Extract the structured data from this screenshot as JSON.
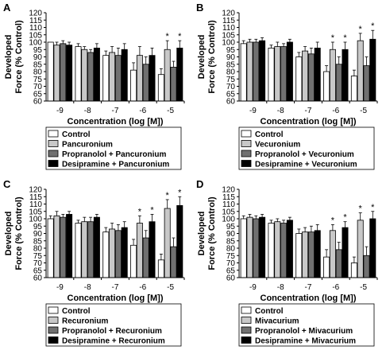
{
  "chart_data": [
    {
      "type": "bar",
      "panel": "A",
      "ylabel": [
        "Developed",
        "Force (% Control)"
      ],
      "xlabel": "Concentration (log [M])",
      "categories": [
        "-9",
        "-8",
        "-7",
        "-6",
        "-5"
      ],
      "ylim": [
        60,
        120
      ],
      "yticks": [
        60,
        65,
        70,
        75,
        80,
        85,
        90,
        95,
        100,
        105,
        110,
        115,
        120
      ],
      "series": [
        {
          "name": "Control",
          "color": "#ffffff",
          "values": [
            100,
            97,
            91,
            81,
            78
          ],
          "errors": [
            0,
            2,
            3,
            5,
            4
          ]
        },
        {
          "name": "Pancuronium",
          "color": "#c8c8c8",
          "values": [
            98,
            95,
            93,
            91,
            95
          ],
          "errors": [
            2,
            2,
            4,
            6,
            6
          ]
        },
        {
          "name": "Propranolol + Pancuronium",
          "color": "#707070",
          "values": [
            99,
            93,
            91,
            85,
            83
          ],
          "errors": [
            2,
            2,
            5,
            5,
            4
          ]
        },
        {
          "name": "Desipramine + Pancuronium",
          "color": "#000000",
          "values": [
            98,
            96,
            95,
            91,
            96
          ],
          "errors": [
            2,
            3,
            4,
            5,
            5
          ]
        }
      ],
      "annotations": [
        {
          "category": "-5",
          "series": 1,
          "text": "*"
        },
        {
          "category": "-5",
          "series": 3,
          "text": "*"
        }
      ]
    },
    {
      "type": "bar",
      "panel": "B",
      "ylabel": [
        "Developed",
        "Force (% Control)"
      ],
      "xlabel": "Concentration (log [M])",
      "categories": [
        "-9",
        "-8",
        "-7",
        "-6",
        "-5"
      ],
      "ylim": [
        60,
        120
      ],
      "yticks": [
        60,
        65,
        70,
        75,
        80,
        85,
        90,
        95,
        100,
        105,
        110,
        115,
        120
      ],
      "series": [
        {
          "name": "Control",
          "color": "#ffffff",
          "values": [
            99,
            96,
            90,
            80,
            77
          ],
          "errors": [
            2,
            2,
            3,
            4,
            4
          ]
        },
        {
          "name": "Vecuronium",
          "color": "#c8c8c8",
          "values": [
            100,
            97,
            94,
            95,
            101
          ],
          "errors": [
            2,
            3,
            3,
            5,
            5
          ]
        },
        {
          "name": "Propranolol + Vecuronium",
          "color": "#707070",
          "values": [
            100,
            97,
            92,
            85,
            84
          ],
          "errors": [
            2,
            2,
            4,
            5,
            6
          ]
        },
        {
          "name": "Desipramine + Vecuronium",
          "color": "#000000",
          "values": [
            101,
            100,
            96,
            95,
            102
          ],
          "errors": [
            2,
            2,
            4,
            5,
            6
          ]
        }
      ],
      "annotations": [
        {
          "category": "-6",
          "series": 1,
          "text": "*"
        },
        {
          "category": "-6",
          "series": 3,
          "text": "*"
        },
        {
          "category": "-5",
          "series": 1,
          "text": "*"
        },
        {
          "category": "-5",
          "series": 3,
          "text": "*"
        }
      ]
    },
    {
      "type": "bar",
      "panel": "C",
      "ylabel": [
        "Developed",
        "Force (% Control)"
      ],
      "xlabel": "Concentration (log [M])",
      "categories": [
        "-9",
        "-8",
        "-7",
        "-6",
        "-5"
      ],
      "ylim": [
        60,
        120
      ],
      "yticks": [
        60,
        65,
        70,
        75,
        80,
        85,
        90,
        95,
        100,
        105,
        110,
        115,
        120
      ],
      "series": [
        {
          "name": "Control",
          "color": "#ffffff",
          "values": [
            100,
            97,
            91,
            82,
            72
          ],
          "errors": [
            2,
            2,
            3,
            4,
            4
          ]
        },
        {
          "name": "Recuronium",
          "color": "#c8c8c8",
          "values": [
            102,
            98,
            93,
            97,
            107
          ],
          "errors": [
            3,
            3,
            4,
            5,
            6
          ]
        },
        {
          "name": "Propranolol + Recuronium",
          "color": "#707070",
          "values": [
            101,
            98,
            92,
            87,
            81
          ],
          "errors": [
            2,
            3,
            4,
            5,
            6
          ]
        },
        {
          "name": "Desipramine + Recuronium",
          "color": "#000000",
          "values": [
            103,
            101,
            94,
            98,
            109
          ],
          "errors": [
            2,
            2,
            4,
            5,
            6
          ]
        }
      ],
      "annotations": [
        {
          "category": "-6",
          "series": 1,
          "text": "*"
        },
        {
          "category": "-6",
          "series": 3,
          "text": "*"
        },
        {
          "category": "-5",
          "series": 1,
          "text": "*"
        },
        {
          "category": "-5",
          "series": 3,
          "text": "*"
        }
      ]
    },
    {
      "type": "bar",
      "panel": "D",
      "ylabel": [
        "Developed",
        "Force (% Control)"
      ],
      "xlabel": "Concentration (log [M])",
      "categories": [
        "-9",
        "-8",
        "-7",
        "-6",
        "-5"
      ],
      "ylim": [
        60,
        120
      ],
      "yticks": [
        60,
        65,
        70,
        75,
        80,
        85,
        90,
        95,
        100,
        105,
        110,
        115,
        120
      ],
      "series": [
        {
          "name": "Control",
          "color": "#ffffff",
          "values": [
            100,
            97,
            90,
            74,
            70
          ],
          "errors": [
            2,
            2,
            3,
            5,
            4
          ]
        },
        {
          "name": "Mivacurium",
          "color": "#c8c8c8",
          "values": [
            101,
            98,
            91,
            92,
            99
          ],
          "errors": [
            2,
            2,
            3,
            4,
            5
          ]
        },
        {
          "name": "Propranolol + Mivacurium",
          "color": "#707070",
          "values": [
            100,
            97,
            91,
            79,
            75
          ],
          "errors": [
            2,
            2,
            4,
            5,
            6
          ]
        },
        {
          "name": "Desipramine + Mivacurium",
          "color": "#000000",
          "values": [
            101,
            99,
            92,
            94,
            100
          ],
          "errors": [
            2,
            2,
            4,
            4,
            5
          ]
        }
      ],
      "annotations": [
        {
          "category": "-6",
          "series": 1,
          "text": "*"
        },
        {
          "category": "-6",
          "series": 3,
          "text": "*"
        },
        {
          "category": "-5",
          "series": 1,
          "text": "*"
        },
        {
          "category": "-5",
          "series": 3,
          "text": "*"
        }
      ]
    }
  ]
}
